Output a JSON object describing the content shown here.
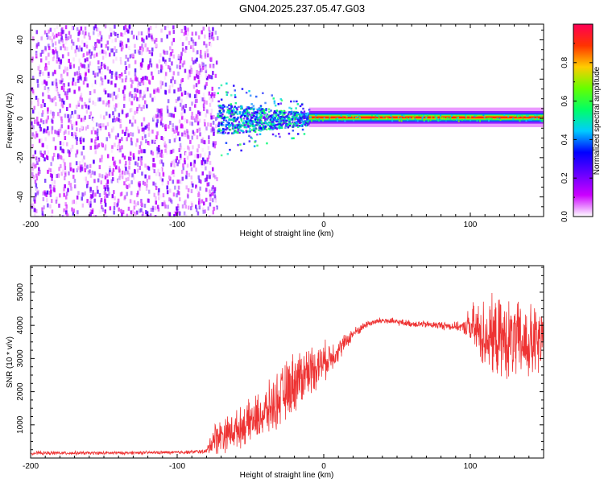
{
  "figure_title": "GN04.2025.237.05.47.G03",
  "chart_data": [
    {
      "type": "heatmap",
      "title": "",
      "xlabel": "Height of straight line (km)",
      "ylabel": "Frequency (Hz)",
      "xlim": [
        -200,
        150
      ],
      "ylim": [
        -50,
        48
      ],
      "xticks": [
        -200,
        -100,
        0,
        100
      ],
      "yticks": [
        -40,
        -20,
        0,
        20,
        40
      ],
      "xtick_labels": [
        "-200",
        "-100",
        "0",
        "100"
      ],
      "ytick_labels": [
        "-40",
        "-20",
        "0",
        "20",
        "40"
      ],
      "colorbar": {
        "label": "Normalized spectral amplitude",
        "range": [
          0,
          1
        ],
        "ticks": [
          0.0,
          0.2,
          0.4,
          0.6,
          0.8
        ],
        "tick_labels": [
          "0.0",
          "0.2",
          "0.4",
          "0.6",
          "0.8"
        ],
        "colormap": [
          "#ffffff",
          "#cc00ff",
          "#6600ff",
          "#0000ff",
          "#00ccff",
          "#00ff66",
          "#66ff00",
          "#ffcc00",
          "#ff3300",
          "#ff0055"
        ]
      },
      "regions": [
        {
          "x_range": [
            -200,
            -73
          ],
          "description": "broadband noise",
          "frequency_range": [
            -50,
            48
          ],
          "amplitude": [
            0.0,
            0.25
          ]
        },
        {
          "x_range": [
            -73,
            -10
          ],
          "description": "scattered signal",
          "frequency_center": 0,
          "frequency_halfwidth": [
            8,
            3
          ],
          "amplitude": [
            0.2,
            0.6
          ]
        },
        {
          "x_range": [
            -10,
            150
          ],
          "description": "coherent carrier",
          "frequency_center": 0.5,
          "frequency_halfwidth": 2,
          "amplitude": [
            0.9,
            1.0
          ]
        }
      ]
    },
    {
      "type": "line",
      "title": "",
      "xlabel": "Height of straight line (km)",
      "ylabel": "SNR (10 * v/v)",
      "xlim": [
        -200,
        150
      ],
      "ylim": [
        0,
        5800
      ],
      "xticks": [
        -200,
        -100,
        0,
        100
      ],
      "yticks": [
        1000,
        2000,
        3000,
        4000,
        5000
      ],
      "xtick_labels": [
        "-200",
        "-100",
        "0",
        "100"
      ],
      "ytick_labels": [
        "1000",
        "2000",
        "3000",
        "4000",
        "5000"
      ],
      "color": "#ee3333",
      "series": [
        {
          "name": "SNR",
          "x": [
            -200,
            -150,
            -100,
            -80,
            -75,
            -60,
            -50,
            -40,
            -30,
            -20,
            -10,
            0,
            10,
            20,
            30,
            40,
            50,
            60,
            80,
            95,
            100,
            110,
            120,
            130,
            140,
            150
          ],
          "y": [
            150,
            150,
            170,
            200,
            600,
            850,
            1100,
            1350,
            1800,
            2300,
            2650,
            2900,
            3250,
            3750,
            4050,
            4150,
            4100,
            4050,
            4000,
            3950,
            3950,
            3700,
            3600,
            3500,
            3450,
            3450
          ],
          "noise_amplitude": [
            60,
            60,
            60,
            80,
            600,
            650,
            750,
            900,
            1000,
            1100,
            900,
            700,
            400,
            200,
            120,
            120,
            120,
            120,
            140,
            160,
            800,
            1300,
            1400,
            1400,
            1400,
            1300
          ]
        }
      ]
    }
  ]
}
